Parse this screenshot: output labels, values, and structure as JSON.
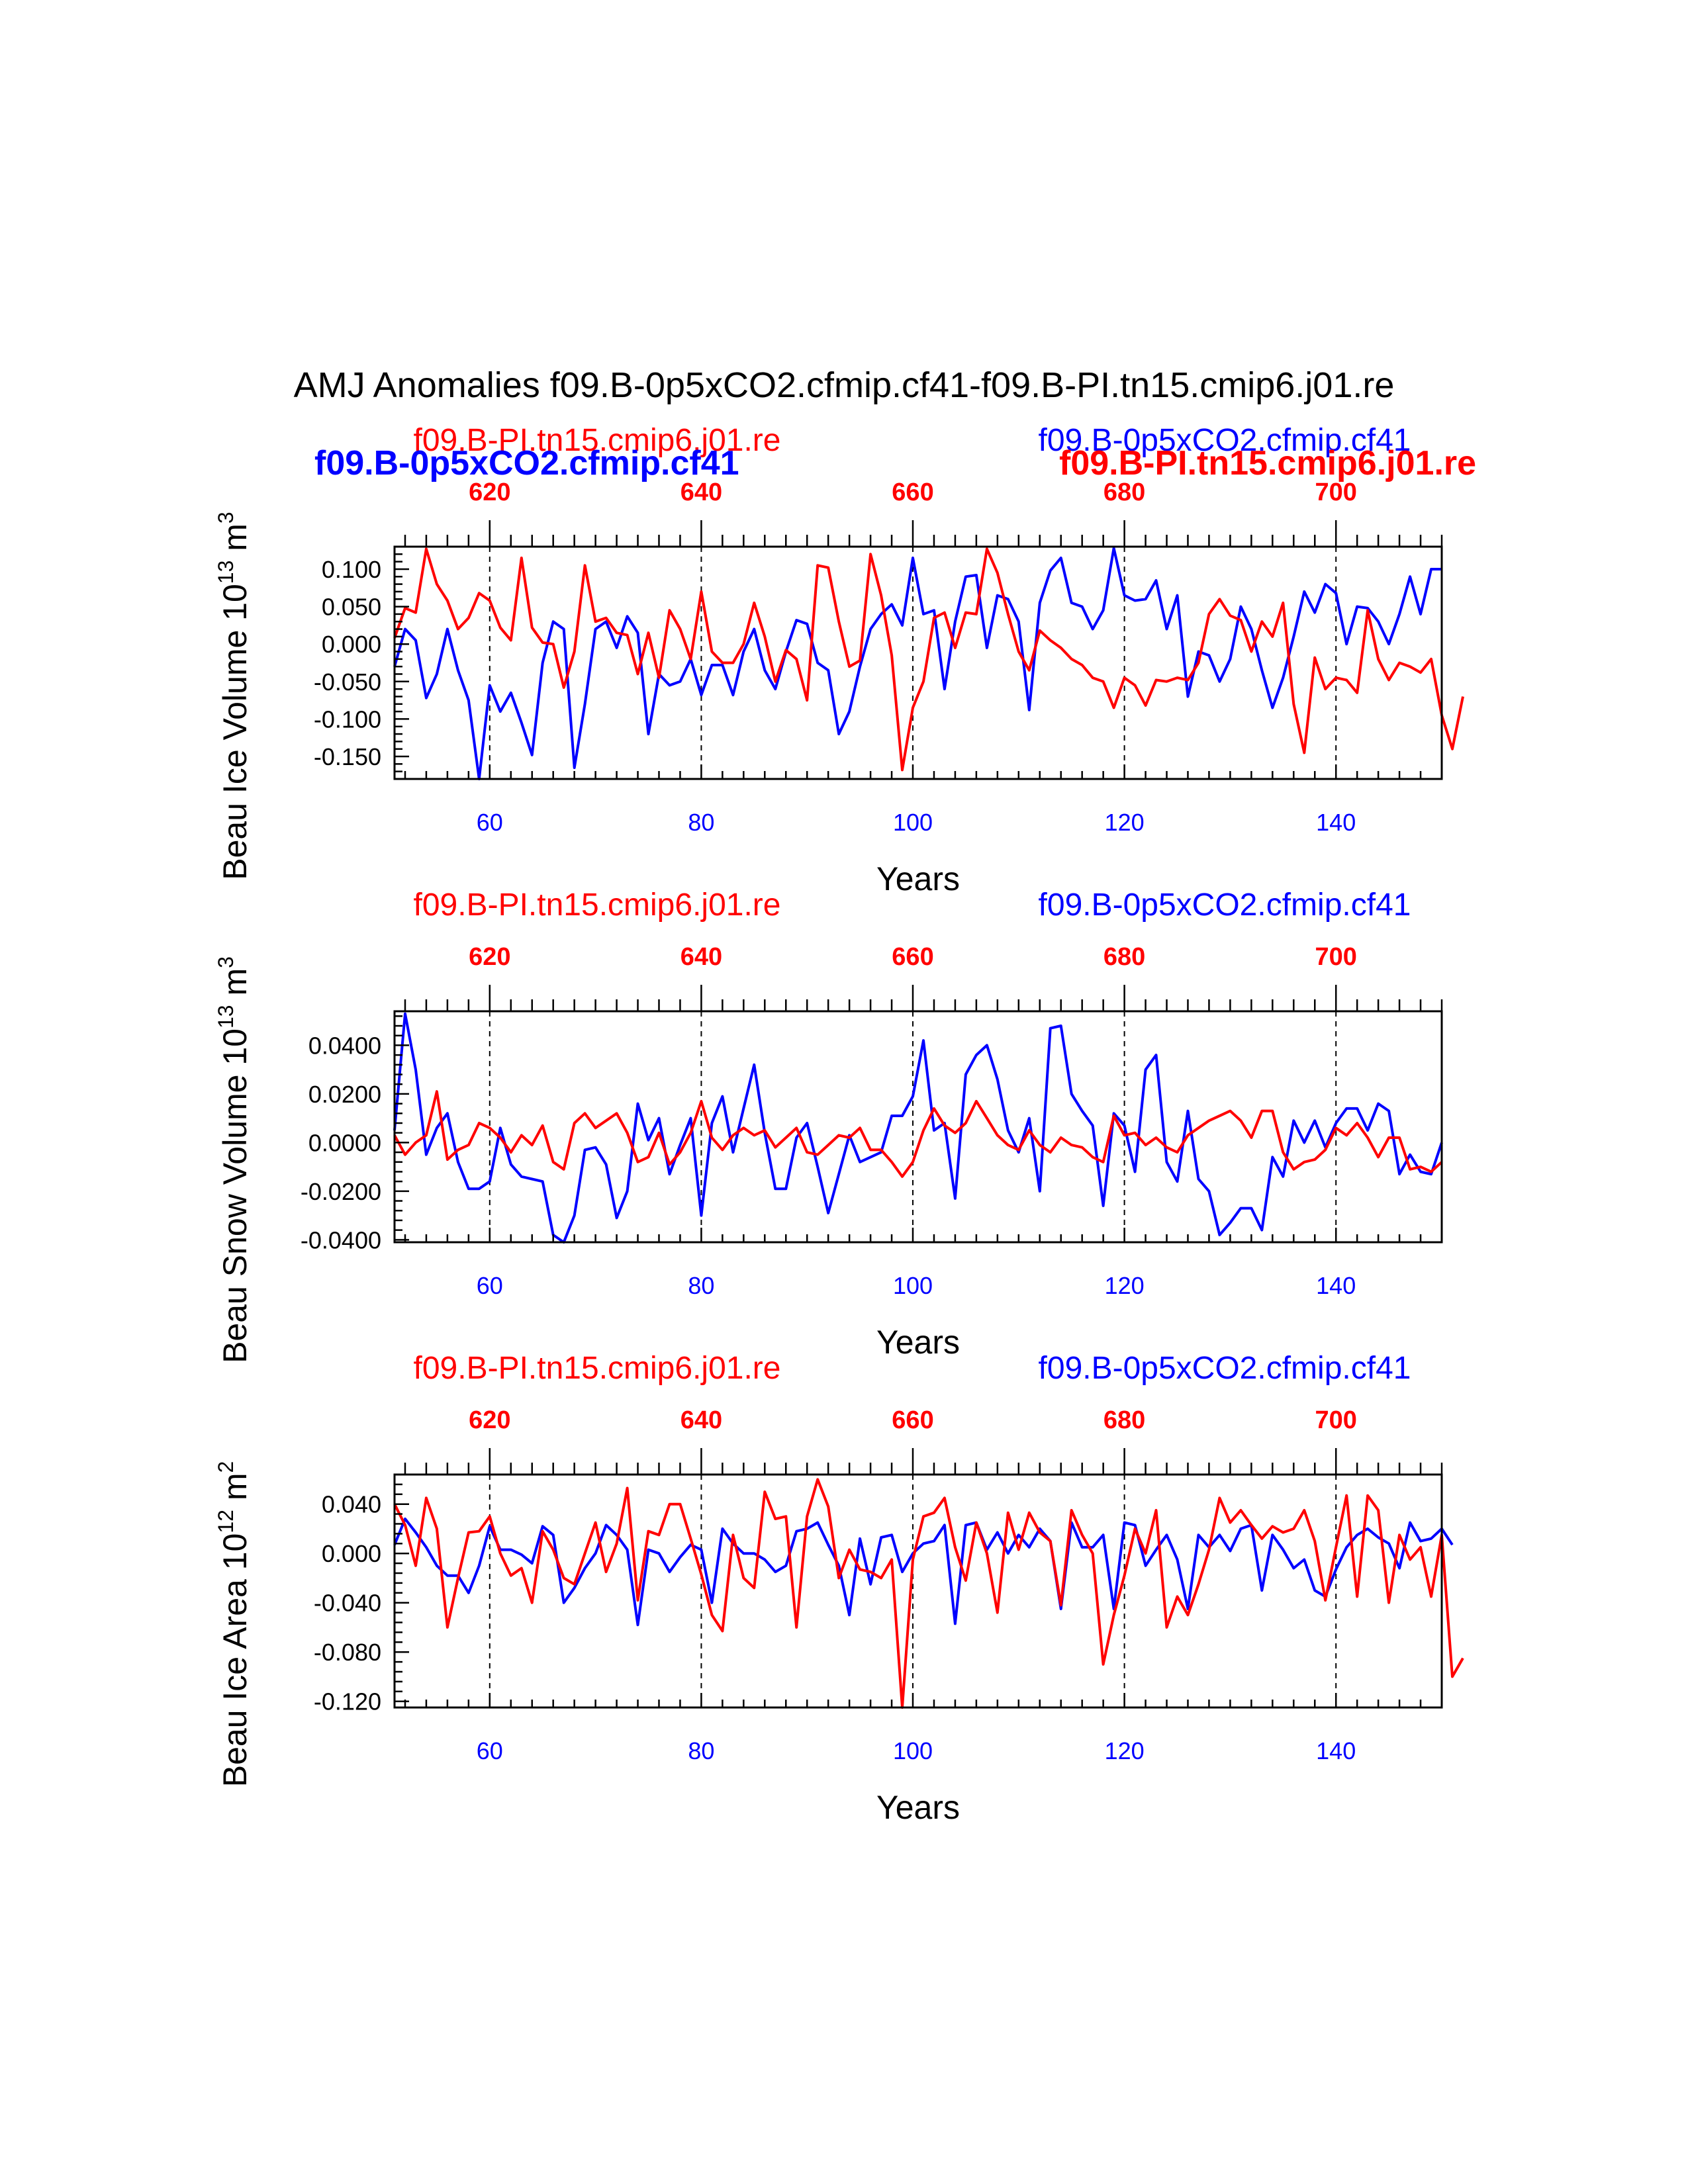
{
  "figure_title": "AMJ Anomalies f09.B-0p5xCO2.cfmip.cf41-f09.B-PI.tn15.cmip6.j01.re",
  "colors": {
    "blue": "#0000ff",
    "red": "#ff0000",
    "black": "#000000"
  },
  "legend": {
    "blue_bold": "f09.B-0p5xCO2.cfmip.cf41",
    "red_bold": "f09.B-PI.tn15.cmip6.j01.re"
  },
  "chart_data": [
    {
      "type": "line",
      "id": "ice_volume",
      "ylabel": "Beau Ice Volume 10",
      "ylabel_exp": "13",
      "ylabel_unit": " m",
      "ylabel_unit_exp": "3",
      "xlabel": "Years",
      "top_left_label": "f09.B-PI.tn15.cmip6.j01.re",
      "top_right_label": "f09.B-0p5xCO2.cfmip.cf41",
      "xlim": [
        51,
        150
      ],
      "ylim": [
        -0.18,
        0.13
      ],
      "x_ticks": [
        60,
        80,
        100,
        120,
        140
      ],
      "x_tick_labels": [
        "60",
        "80",
        "100",
        "120",
        "140"
      ],
      "top_ticks": [
        620,
        640,
        660,
        680,
        700
      ],
      "top_tick_labels": [
        "620",
        "640",
        "660",
        "680",
        "700"
      ],
      "y_ticks": [
        0.1,
        0.05,
        0.0,
        -0.05,
        -0.1,
        -0.15
      ],
      "y_tick_labels": [
        "0.100",
        "0.050",
        "0.000",
        "-0.050",
        "-0.100",
        "-0.150"
      ],
      "series": [
        {
          "name": "f09.B-0p5xCO2.cfmip.cf41",
          "color": "blue",
          "values": [
            -0.03,
            0.02,
            0.005,
            -0.072,
            -0.04,
            0.02,
            -0.035,
            -0.075,
            -0.18,
            -0.055,
            -0.09,
            -0.065,
            -0.105,
            -0.148,
            -0.025,
            0.03,
            0.02,
            -0.165,
            -0.08,
            0.02,
            0.03,
            -0.005,
            0.037,
            0.015,
            -0.12,
            -0.04,
            -0.055,
            -0.05,
            -0.02,
            -0.068,
            -0.028,
            -0.028,
            -0.068,
            -0.01,
            0.02,
            -0.035,
            -0.06,
            -0.01,
            0.032,
            0.027,
            -0.025,
            -0.035,
            -0.12,
            -0.09,
            -0.03,
            0.02,
            0.04,
            0.053,
            0.025,
            0.115,
            0.04,
            0.045,
            -0.06,
            0.03,
            0.09,
            0.092,
            -0.005,
            0.065,
            0.06,
            0.03,
            -0.088,
            0.055,
            0.098,
            0.115,
            0.055,
            0.05,
            0.02,
            0.045,
            0.128,
            0.065,
            0.058,
            0.06,
            0.085,
            0.02,
            0.065,
            -0.07,
            -0.01,
            -0.015,
            -0.05,
            -0.02,
            0.05,
            0.02,
            -0.035,
            -0.085,
            -0.045,
            0.01,
            0.07,
            0.042,
            0.08,
            0.068,
            0.0,
            0.05,
            0.048,
            0.03,
            0.0,
            0.04,
            0.09,
            0.04,
            0.1,
            0.1
          ]
        },
        {
          "name": "f09.B-PI.tn15.cmip6.j01.re",
          "color": "red",
          "values": [
            0.008,
            0.048,
            0.042,
            0.127,
            0.08,
            0.058,
            0.02,
            0.035,
            0.068,
            0.058,
            0.022,
            0.005,
            0.115,
            0.022,
            0.002,
            0.0,
            -0.058,
            -0.01,
            0.105,
            0.03,
            0.035,
            0.015,
            0.012,
            -0.04,
            0.015,
            -0.045,
            0.045,
            0.02,
            -0.02,
            0.07,
            -0.01,
            -0.025,
            -0.025,
            0.0,
            0.055,
            0.01,
            -0.05,
            -0.008,
            -0.02,
            -0.075,
            0.105,
            0.102,
            0.03,
            -0.03,
            -0.022,
            0.12,
            0.065,
            -0.015,
            -0.168,
            -0.085,
            -0.05,
            0.035,
            0.042,
            -0.005,
            0.042,
            0.04,
            0.127,
            0.095,
            0.04,
            -0.01,
            -0.035,
            0.018,
            0.005,
            -0.005,
            -0.02,
            -0.028,
            -0.045,
            -0.05,
            -0.085,
            -0.045,
            -0.055,
            -0.082,
            -0.048,
            -0.05,
            -0.045,
            -0.048,
            -0.025,
            0.04,
            0.06,
            0.038,
            0.032,
            -0.01,
            0.03,
            0.01,
            0.055,
            -0.08,
            -0.145,
            -0.018,
            -0.06,
            -0.045,
            -0.048,
            -0.065,
            0.045,
            -0.02,
            -0.048,
            -0.025,
            -0.03,
            -0.038,
            -0.02,
            -0.095,
            -0.14,
            -0.07
          ]
        }
      ]
    },
    {
      "type": "line",
      "id": "snow_volume",
      "ylabel": "Beau Snow Volume 10",
      "ylabel_exp": "13",
      "ylabel_unit": " m",
      "ylabel_unit_exp": "3",
      "xlabel": "Years",
      "top_left_label": "f09.B-PI.tn15.cmip6.j01.re",
      "top_right_label": "f09.B-0p5xCO2.cfmip.cf41",
      "xlim": [
        51,
        150
      ],
      "ylim": [
        -0.041,
        0.054
      ],
      "x_ticks": [
        60,
        80,
        100,
        120,
        140
      ],
      "x_tick_labels": [
        "60",
        "80",
        "100",
        "120",
        "140"
      ],
      "top_ticks": [
        620,
        640,
        660,
        680,
        700
      ],
      "top_tick_labels": [
        "620",
        "640",
        "660",
        "680",
        "700"
      ],
      "y_ticks": [
        0.04,
        0.02,
        0.0,
        -0.02,
        -0.04
      ],
      "y_tick_labels": [
        "0.0400",
        "0.0200",
        "0.0000",
        "-0.0200",
        "-0.0400"
      ],
      "series": [
        {
          "name": "f09.B-0p5xCO2.cfmip.cf41",
          "color": "blue",
          "values": [
            0.005,
            0.053,
            0.03,
            -0.005,
            0.006,
            0.012,
            -0.008,
            -0.019,
            -0.019,
            -0.016,
            0.006,
            -0.009,
            -0.014,
            -0.015,
            -0.016,
            -0.038,
            -0.041,
            -0.03,
            -0.003,
            -0.002,
            -0.009,
            -0.031,
            -0.02,
            0.016,
            0.001,
            0.01,
            -0.013,
            -0.001,
            0.01,
            -0.03,
            0.008,
            0.019,
            -0.004,
            0.014,
            0.032,
            0.004,
            -0.019,
            -0.019,
            0.002,
            0.008,
            -0.01,
            -0.029,
            -0.013,
            0.003,
            -0.008,
            -0.006,
            -0.004,
            0.011,
            0.011,
            0.019,
            0.042,
            0.005,
            0.008,
            -0.023,
            0.028,
            0.036,
            0.04,
            0.026,
            0.005,
            -0.004,
            0.01,
            -0.02,
            0.047,
            0.048,
            0.02,
            0.013,
            0.007,
            -0.026,
            0.012,
            0.007,
            -0.012,
            0.03,
            0.036,
            -0.008,
            -0.016,
            0.013,
            -0.015,
            -0.02,
            -0.038,
            -0.033,
            -0.027,
            -0.027,
            -0.036,
            -0.006,
            -0.014,
            0.009,
            0.0,
            0.009,
            -0.002,
            0.008,
            0.014,
            0.014,
            0.005,
            0.016,
            0.013,
            -0.013,
            -0.005,
            -0.012,
            -0.013,
            0.0
          ]
        },
        {
          "name": "f09.B-PI.tn15.cmip6.j01.re",
          "color": "red",
          "values": [
            0.003,
            -0.005,
            0.0,
            0.003,
            0.021,
            -0.007,
            -0.003,
            -0.001,
            0.008,
            0.006,
            0.002,
            -0.004,
            0.003,
            -0.001,
            0.007,
            -0.008,
            -0.011,
            0.008,
            0.012,
            0.006,
            0.009,
            0.012,
            0.004,
            -0.008,
            -0.006,
            0.004,
            -0.009,
            -0.004,
            0.004,
            0.017,
            0.002,
            -0.003,
            0.003,
            0.006,
            0.003,
            0.005,
            -0.002,
            0.002,
            0.006,
            -0.004,
            -0.005,
            -0.001,
            0.003,
            0.002,
            0.006,
            -0.003,
            -0.003,
            -0.008,
            -0.014,
            -0.008,
            0.005,
            0.014,
            0.007,
            0.004,
            0.008,
            0.017,
            0.01,
            0.003,
            -0.001,
            -0.003,
            0.005,
            -0.001,
            -0.004,
            0.002,
            -0.001,
            -0.002,
            -0.006,
            -0.008,
            0.011,
            0.003,
            0.004,
            -0.001,
            0.002,
            -0.002,
            -0.004,
            0.003,
            0.006,
            0.009,
            0.011,
            0.013,
            0.009,
            0.002,
            0.013,
            0.013,
            -0.004,
            -0.011,
            -0.008,
            -0.007,
            -0.003,
            0.006,
            0.003,
            0.008,
            0.002,
            -0.006,
            0.002,
            0.002,
            -0.011,
            -0.01,
            -0.012,
            -0.008
          ]
        }
      ]
    },
    {
      "type": "line",
      "id": "ice_area",
      "ylabel": "Beau Ice Area 10",
      "ylabel_exp": "12",
      "ylabel_unit": " m",
      "ylabel_unit_exp": "2",
      "xlabel": "Years",
      "top_left_label": "f09.B-PI.tn15.cmip6.j01.re",
      "top_right_label": "f09.B-0p5xCO2.cfmip.cf41",
      "xlim": [
        51,
        150
      ],
      "ylim": [
        -0.125,
        0.064
      ],
      "x_ticks": [
        60,
        80,
        100,
        120,
        140
      ],
      "x_tick_labels": [
        "60",
        "80",
        "100",
        "120",
        "140"
      ],
      "top_ticks": [
        620,
        640,
        660,
        680,
        700
      ],
      "top_tick_labels": [
        "620",
        "640",
        "660",
        "680",
        "700"
      ],
      "y_ticks": [
        0.04,
        0.0,
        -0.04,
        -0.08,
        -0.12
      ],
      "y_tick_labels": [
        "0.040",
        "0.000",
        "-0.040",
        "-0.080",
        "-0.120"
      ],
      "series": [
        {
          "name": "f09.B-0p5xCO2.cfmip.cf41",
          "color": "blue",
          "values": [
            0.007,
            0.028,
            0.017,
            0.005,
            -0.01,
            -0.018,
            -0.018,
            -0.032,
            -0.01,
            0.022,
            0.003,
            0.003,
            -0.001,
            -0.008,
            0.022,
            0.015,
            -0.04,
            -0.028,
            -0.012,
            0.0,
            0.023,
            0.015,
            0.003,
            -0.058,
            0.003,
            0.0,
            -0.015,
            -0.003,
            0.007,
            0.003,
            -0.04,
            0.02,
            0.008,
            0.0,
            0.0,
            -0.005,
            -0.015,
            -0.01,
            0.018,
            0.02,
            0.025,
            0.007,
            -0.01,
            -0.05,
            0.012,
            -0.025,
            0.013,
            0.015,
            -0.015,
            0.0,
            0.008,
            0.01,
            0.023,
            -0.057,
            0.023,
            0.025,
            0.003,
            0.017,
            0.0,
            0.015,
            0.005,
            0.02,
            0.01,
            -0.045,
            0.025,
            0.005,
            0.005,
            0.015,
            -0.045,
            0.025,
            0.023,
            -0.01,
            0.003,
            0.015,
            -0.005,
            -0.045,
            0.015,
            0.005,
            0.015,
            0.002,
            0.02,
            0.023,
            -0.03,
            0.015,
            0.003,
            -0.012,
            -0.005,
            -0.03,
            -0.035,
            -0.013,
            0.005,
            0.015,
            0.02,
            0.013,
            0.008,
            -0.012,
            0.025,
            0.01,
            0.012,
            0.02,
            0.007
          ]
        },
        {
          "name": "f09.B-PI.tn15.cmip6.j01.re",
          "color": "red",
          "values": [
            0.04,
            0.023,
            -0.01,
            0.045,
            0.02,
            -0.06,
            -0.02,
            0.017,
            0.018,
            0.03,
            0.0,
            -0.018,
            -0.012,
            -0.04,
            0.018,
            0.003,
            -0.02,
            -0.025,
            0.0,
            0.025,
            -0.015,
            0.008,
            0.053,
            -0.038,
            0.018,
            0.015,
            0.04,
            0.04,
            0.012,
            -0.017,
            -0.05,
            -0.063,
            0.015,
            -0.02,
            -0.028,
            0.05,
            0.028,
            0.03,
            -0.06,
            0.03,
            0.06,
            0.038,
            -0.02,
            0.003,
            -0.013,
            -0.015,
            -0.02,
            -0.005,
            -0.125,
            -0.005,
            0.03,
            0.033,
            0.045,
            0.005,
            -0.022,
            0.025,
            0.0,
            -0.048,
            0.033,
            0.003,
            0.033,
            0.017,
            0.01,
            -0.042,
            0.035,
            0.015,
            0.0,
            -0.09,
            -0.05,
            -0.018,
            0.02,
            0.0,
            0.035,
            -0.06,
            -0.035,
            -0.05,
            -0.025,
            0.003,
            0.045,
            0.025,
            0.035,
            0.023,
            0.012,
            0.022,
            0.017,
            0.02,
            0.035,
            0.01,
            -0.038,
            0.005,
            0.047,
            -0.035,
            0.047,
            0.035,
            -0.04,
            0.015,
            -0.005,
            0.005,
            -0.035,
            0.015,
            -0.1,
            -0.085
          ]
        }
      ]
    }
  ]
}
